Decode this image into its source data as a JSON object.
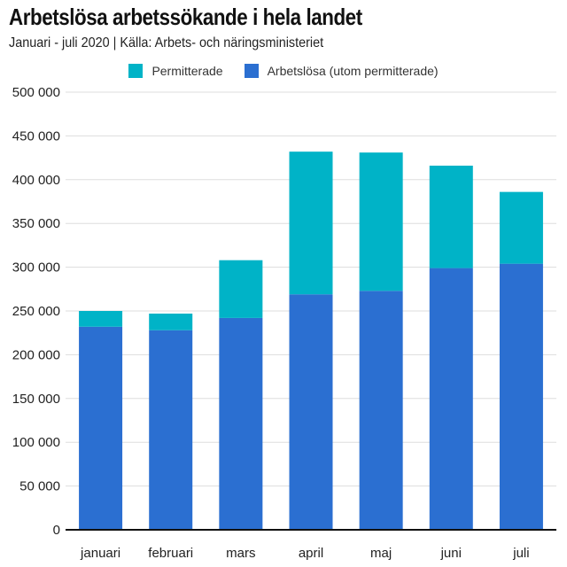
{
  "chart_data": {
    "type": "bar",
    "stacked": true,
    "title": "Arbetslösa arbetssökande i hela landet",
    "subtitle": "Januari - juli 2020 | Källa: Arbets- och näringsministeriet",
    "categories": [
      "januari",
      "februari",
      "mars",
      "april",
      "maj",
      "juni",
      "juli"
    ],
    "series": [
      {
        "name": "Arbetslösa (utom permitterade)",
        "color": "#2b6fd1",
        "values": [
          232000,
          228000,
          242000,
          269000,
          273000,
          299000,
          304000
        ]
      },
      {
        "name": "Permitterade",
        "color": "#00b3c7",
        "values": [
          18000,
          19000,
          66000,
          163000,
          158000,
          117000,
          82000
        ]
      }
    ],
    "legend_order": [
      "Permitterade",
      "Arbetslösa (utom permitterade)"
    ],
    "legend_position": "top-center",
    "ylim": [
      0,
      500000
    ],
    "yticks": [
      0,
      50000,
      100000,
      150000,
      200000,
      250000,
      300000,
      350000,
      400000,
      450000,
      500000
    ],
    "ytick_labels": [
      "0",
      "50 000",
      "100 000",
      "150 000",
      "200 000",
      "250 000",
      "300 000",
      "350 000",
      "400 000",
      "450 000",
      "500 000"
    ],
    "grid": true,
    "xlabel": "",
    "ylabel": ""
  }
}
